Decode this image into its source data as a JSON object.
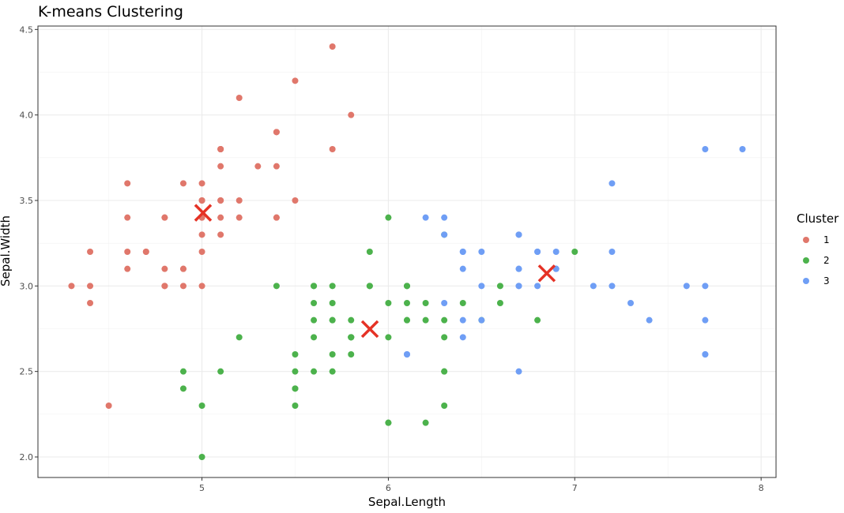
{
  "chart_data": {
    "type": "scatter",
    "title": "K-means Clustering",
    "xlabel": "Sepal.Length",
    "ylabel": "Sepal.Width",
    "xlim": [
      4.12,
      8.08
    ],
    "ylim": [
      1.88,
      4.52
    ],
    "x_ticks": [
      5,
      6,
      7,
      8
    ],
    "x_tick_labels": [
      "5",
      "6",
      "7",
      "8"
    ],
    "y_ticks": [
      2.0,
      2.5,
      3.0,
      3.5,
      4.0,
      4.5
    ],
    "y_tick_labels": [
      "2.0",
      "2.5",
      "3.0",
      "3.5",
      "4.0",
      "4.5"
    ],
    "grid": true,
    "legend": {
      "title": "Cluster",
      "position": "right"
    },
    "series": [
      {
        "name": "1",
        "color": "#e0776b",
        "points": [
          [
            5.1,
            3.5
          ],
          [
            4.9,
            3.0
          ],
          [
            4.7,
            3.2
          ],
          [
            4.6,
            3.1
          ],
          [
            5.0,
            3.6
          ],
          [
            5.4,
            3.9
          ],
          [
            4.6,
            3.4
          ],
          [
            5.0,
            3.4
          ],
          [
            4.4,
            2.9
          ],
          [
            4.9,
            3.1
          ],
          [
            5.4,
            3.7
          ],
          [
            4.8,
            3.4
          ],
          [
            4.8,
            3.0
          ],
          [
            4.3,
            3.0
          ],
          [
            5.8,
            4.0
          ],
          [
            5.7,
            4.4
          ],
          [
            5.4,
            3.9
          ],
          [
            5.1,
            3.5
          ],
          [
            5.7,
            3.8
          ],
          [
            5.1,
            3.8
          ],
          [
            5.4,
            3.4
          ],
          [
            5.1,
            3.7
          ],
          [
            4.6,
            3.6
          ],
          [
            5.1,
            3.3
          ],
          [
            4.8,
            3.4
          ],
          [
            5.0,
            3.0
          ],
          [
            5.0,
            3.4
          ],
          [
            5.2,
            3.5
          ],
          [
            5.2,
            3.4
          ],
          [
            4.7,
            3.2
          ],
          [
            4.8,
            3.1
          ],
          [
            5.4,
            3.4
          ],
          [
            5.2,
            4.1
          ],
          [
            5.5,
            4.2
          ],
          [
            4.9,
            3.1
          ],
          [
            5.0,
            3.2
          ],
          [
            5.5,
            3.5
          ],
          [
            4.9,
            3.6
          ],
          [
            4.4,
            3.0
          ],
          [
            5.1,
            3.4
          ],
          [
            5.0,
            3.5
          ],
          [
            4.5,
            2.3
          ],
          [
            4.4,
            3.2
          ],
          [
            5.0,
            3.5
          ],
          [
            5.1,
            3.8
          ],
          [
            4.8,
            3.0
          ],
          [
            5.1,
            3.8
          ],
          [
            4.6,
            3.2
          ],
          [
            5.3,
            3.7
          ],
          [
            5.0,
            3.3
          ]
        ]
      },
      {
        "name": "2",
        "color": "#4cb24c",
        "points": [
          [
            7.0,
            3.2
          ],
          [
            5.5,
            2.3
          ],
          [
            5.7,
            2.8
          ],
          [
            6.3,
            3.3
          ],
          [
            4.9,
            2.4
          ],
          [
            6.6,
            2.9
          ],
          [
            5.2,
            2.7
          ],
          [
            5.0,
            2.0
          ],
          [
            5.9,
            3.0
          ],
          [
            6.0,
            2.2
          ],
          [
            6.1,
            2.9
          ],
          [
            5.6,
            2.9
          ],
          [
            5.6,
            3.0
          ],
          [
            5.8,
            2.7
          ],
          [
            6.2,
            2.2
          ],
          [
            5.6,
            2.5
          ],
          [
            5.9,
            3.2
          ],
          [
            6.1,
            2.8
          ],
          [
            6.1,
            2.8
          ],
          [
            6.4,
            2.9
          ],
          [
            6.6,
            3.0
          ],
          [
            6.8,
            2.8
          ],
          [
            6.0,
            2.9
          ],
          [
            5.7,
            2.6
          ],
          [
            5.5,
            2.4
          ],
          [
            5.5,
            2.4
          ],
          [
            5.8,
            2.7
          ],
          [
            6.0,
            2.7
          ],
          [
            5.4,
            3.0
          ],
          [
            6.0,
            3.4
          ],
          [
            6.3,
            2.3
          ],
          [
            5.6,
            3.0
          ],
          [
            5.5,
            2.5
          ],
          [
            5.5,
            2.6
          ],
          [
            6.1,
            3.0
          ],
          [
            5.8,
            2.6
          ],
          [
            5.0,
            2.3
          ],
          [
            5.6,
            2.7
          ],
          [
            5.7,
            3.0
          ],
          [
            5.7,
            2.9
          ],
          [
            6.2,
            2.9
          ],
          [
            5.1,
            2.5
          ],
          [
            5.7,
            2.8
          ],
          [
            4.9,
            2.5
          ],
          [
            5.7,
            2.5
          ],
          [
            5.8,
            2.8
          ],
          [
            6.0,
            2.2
          ],
          [
            5.6,
            2.8
          ],
          [
            6.3,
            2.7
          ],
          [
            6.2,
            2.8
          ],
          [
            6.1,
            3.0
          ],
          [
            6.3,
            2.5
          ],
          [
            6.5,
            2.8
          ],
          [
            6.3,
            2.8
          ],
          [
            5.8,
            2.7
          ],
          [
            5.8,
            2.7
          ],
          [
            6.3,
            2.5
          ],
          [
            5.9,
            3.0
          ]
        ]
      },
      {
        "name": "3",
        "color": "#6f9ef5",
        "points": [
          [
            6.4,
            3.2
          ],
          [
            6.9,
            3.1
          ],
          [
            6.5,
            2.8
          ],
          [
            6.7,
            3.1
          ],
          [
            6.1,
            2.6
          ],
          [
            7.7,
            2.6
          ],
          [
            6.3,
            2.9
          ],
          [
            6.7,
            2.5
          ],
          [
            7.2,
            3.6
          ],
          [
            6.5,
            3.2
          ],
          [
            6.4,
            2.7
          ],
          [
            6.8,
            3.0
          ],
          [
            6.4,
            3.2
          ],
          [
            6.5,
            3.0
          ],
          [
            7.7,
            3.8
          ],
          [
            7.7,
            2.6
          ],
          [
            6.9,
            3.2
          ],
          [
            7.7,
            2.8
          ],
          [
            6.7,
            3.3
          ],
          [
            7.2,
            3.2
          ],
          [
            7.2,
            3.0
          ],
          [
            7.4,
            2.8
          ],
          [
            7.9,
            3.8
          ],
          [
            6.4,
            2.8
          ],
          [
            6.1,
            2.6
          ],
          [
            7.7,
            3.0
          ],
          [
            6.3,
            3.4
          ],
          [
            6.4,
            3.1
          ],
          [
            6.9,
            3.1
          ],
          [
            6.7,
            3.1
          ],
          [
            6.9,
            3.1
          ],
          [
            6.8,
            3.2
          ],
          [
            6.7,
            3.3
          ],
          [
            6.7,
            3.0
          ],
          [
            6.2,
            3.4
          ],
          [
            6.3,
            3.3
          ],
          [
            7.6,
            3.0
          ],
          [
            7.3,
            2.9
          ],
          [
            6.7,
            3.0
          ],
          [
            6.8,
            3.2
          ],
          [
            7.1,
            3.0
          ]
        ]
      }
    ],
    "centroids": {
      "color": "#e53225",
      "points": [
        [
          5.006,
          3.428
        ],
        [
          5.901,
          2.748
        ],
        [
          6.85,
          3.074
        ]
      ]
    }
  }
}
